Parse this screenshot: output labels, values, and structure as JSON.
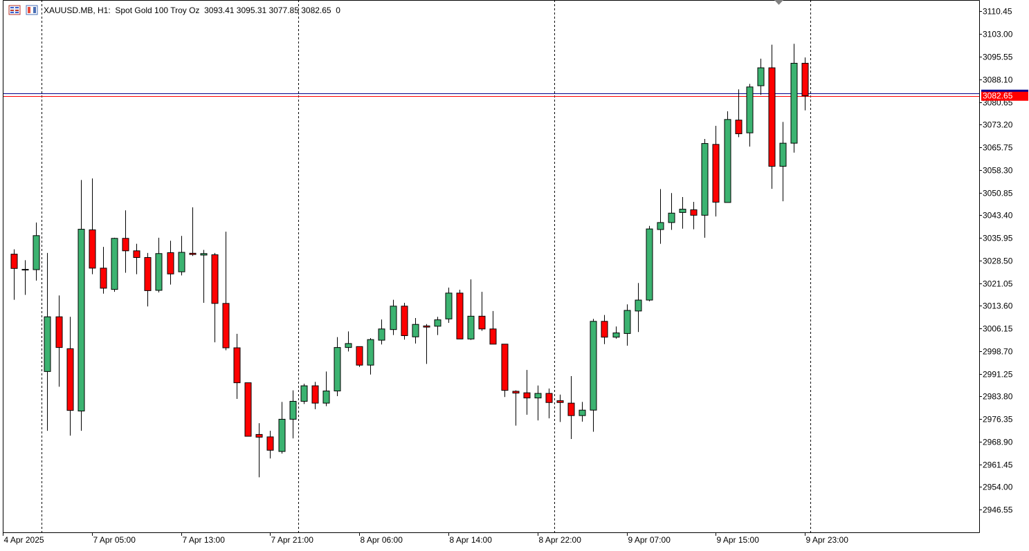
{
  "header": {
    "symbol_line": "XAUUSD.MB, H1:  Spot Gold 100 Troy Oz  3093.41 3095.31 3077.85 3082.65  0"
  },
  "price_tag": {
    "label": "3082.65",
    "value": 3082.65,
    "color": "#ff0000"
  },
  "colors": {
    "bull": "#3cb371",
    "bear": "#ff0000",
    "wick": "#000000",
    "grid_separator": "#000000",
    "bid_line": "#00008b",
    "ask_line": "#ff0000",
    "background": "#ffffff"
  },
  "chart_data": {
    "type": "candlestick",
    "title": "XAUUSD.MB, H1:  Spot Gold 100 Troy Oz",
    "timeframe": "H1",
    "ohlc_readout": {
      "open": 3093.41,
      "high": 3095.31,
      "low": 3077.85,
      "close": 3082.65,
      "volume": 0
    },
    "ylim": [
      2939.1,
      3114.2
    ],
    "y_ticks": [
      "3110.45",
      "3103.00",
      "3095.55",
      "3088.10",
      "3080.65",
      "3073.20",
      "3065.75",
      "3058.30",
      "3050.85",
      "3043.40",
      "3035.95",
      "3028.50",
      "3021.05",
      "3013.60",
      "3006.15",
      "2998.70",
      "2991.25",
      "2983.80",
      "2976.35",
      "2968.90",
      "2961.45",
      "2954.00",
      "2946.55"
    ],
    "x_labels": [
      {
        "index": 0,
        "label": "4 Apr 2025"
      },
      {
        "index": 8,
        "label": "7 Apr 05:00"
      },
      {
        "index": 16,
        "label": "7 Apr 13:00"
      },
      {
        "index": 24,
        "label": "7 Apr 21:00"
      },
      {
        "index": 32,
        "label": "8 Apr 06:00"
      },
      {
        "index": 40,
        "label": "8 Apr 14:00"
      },
      {
        "index": 48,
        "label": "8 Apr 22:00"
      },
      {
        "index": 56,
        "label": "9 Apr 07:00"
      },
      {
        "index": 64,
        "label": "9 Apr 15:00"
      },
      {
        "index": 72,
        "label": "9 Apr 23:00"
      }
    ],
    "day_separators_after_index": [
      3.5,
      26.5,
      49.5,
      72.5
    ],
    "bid": 3082.65,
    "ask": 3083.6,
    "candles": [
      {
        "o": 3021.5,
        "h": 3031.0,
        "l": 3020.5,
        "c": 3030.8
      },
      {
        "o": 3030.6,
        "h": 3032.2,
        "l": 3015.6,
        "c": 3025.9
      },
      {
        "o": 3025.5,
        "h": 3028.6,
        "l": 3017.2,
        "c": 3025.6
      },
      {
        "o": 3025.5,
        "h": 3041.0,
        "l": 3021.9,
        "c": 3036.7
      },
      {
        "o": 2992.0,
        "h": 3031.0,
        "l": 2972.5,
        "c": 3010.0
      },
      {
        "o": 3010.0,
        "h": 3017.0,
        "l": 2987.0,
        "c": 2999.9
      },
      {
        "o": 2999.5,
        "h": 3010.0,
        "l": 2970.9,
        "c": 2979.2
      },
      {
        "o": 2979.0,
        "h": 3055.0,
        "l": 2972.5,
        "c": 3038.8
      },
      {
        "o": 3038.6,
        "h": 3055.5,
        "l": 3024.0,
        "c": 3026.0
      },
      {
        "o": 3026.0,
        "h": 3033.0,
        "l": 3017.6,
        "c": 3019.4
      },
      {
        "o": 3019.0,
        "h": 3036.0,
        "l": 3018.2,
        "c": 3035.8
      },
      {
        "o": 3035.8,
        "h": 3045.0,
        "l": 3024.5,
        "c": 3031.7
      },
      {
        "o": 3031.7,
        "h": 3034.0,
        "l": 3024.0,
        "c": 3029.5
      },
      {
        "o": 3029.5,
        "h": 3031.0,
        "l": 3013.4,
        "c": 3018.6
      },
      {
        "o": 3018.7,
        "h": 3036.0,
        "l": 3018.0,
        "c": 3030.8
      },
      {
        "o": 3031.1,
        "h": 3035.0,
        "l": 3020.6,
        "c": 3024.1
      },
      {
        "o": 3024.8,
        "h": 3036.6,
        "l": 3023.6,
        "c": 3031.2
      },
      {
        "o": 3030.9,
        "h": 3046.0,
        "l": 3030.0,
        "c": 3030.5
      },
      {
        "o": 3030.3,
        "h": 3032.0,
        "l": 3014.6,
        "c": 3030.8
      },
      {
        "o": 3030.4,
        "h": 3031.0,
        "l": 3001.6,
        "c": 3014.4
      },
      {
        "o": 3014.4,
        "h": 3038.0,
        "l": 2999.0,
        "c": 2999.8
      },
      {
        "o": 2999.8,
        "h": 3004.4,
        "l": 2983.0,
        "c": 2988.3
      },
      {
        "o": 2988.3,
        "h": 2988.3,
        "l": 2970.7,
        "c": 2970.7
      },
      {
        "o": 2971.3,
        "h": 2975.0,
        "l": 2957.2,
        "c": 2970.4
      },
      {
        "o": 2970.5,
        "h": 2972.5,
        "l": 2963.4,
        "c": 2966.1
      },
      {
        "o": 2965.7,
        "h": 2982.0,
        "l": 2965.0,
        "c": 2976.3
      },
      {
        "o": 2976.3,
        "h": 2985.8,
        "l": 2970.0,
        "c": 2982.2
      },
      {
        "o": 2982.2,
        "h": 2988.0,
        "l": 2981.3,
        "c": 2987.3
      },
      {
        "o": 2987.3,
        "h": 2988.6,
        "l": 2979.6,
        "c": 2981.6
      },
      {
        "o": 2981.6,
        "h": 2992.0,
        "l": 2980.6,
        "c": 2985.6
      },
      {
        "o": 2985.6,
        "h": 3003.3,
        "l": 2983.9,
        "c": 2999.9
      },
      {
        "o": 2999.9,
        "h": 3005.2,
        "l": 2998.6,
        "c": 3001.2
      },
      {
        "o": 3000.2,
        "h": 3000.2,
        "l": 2993.5,
        "c": 2994.1
      },
      {
        "o": 2994.1,
        "h": 3003.0,
        "l": 2991.0,
        "c": 3002.5
      },
      {
        "o": 3002.3,
        "h": 3009.1,
        "l": 3000.9,
        "c": 3006.0
      },
      {
        "o": 3005.8,
        "h": 3015.6,
        "l": 3004.0,
        "c": 3013.5
      },
      {
        "o": 3013.5,
        "h": 3014.6,
        "l": 3002.5,
        "c": 3003.8
      },
      {
        "o": 3003.4,
        "h": 3009.6,
        "l": 3001.2,
        "c": 3007.5
      },
      {
        "o": 3007.0,
        "h": 3007.6,
        "l": 2994.5,
        "c": 3006.6
      },
      {
        "o": 3006.9,
        "h": 3010.0,
        "l": 3004.0,
        "c": 3009.0
      },
      {
        "o": 3009.3,
        "h": 3019.6,
        "l": 3008.0,
        "c": 3017.8
      },
      {
        "o": 3017.8,
        "h": 3018.9,
        "l": 3002.7,
        "c": 3002.7
      },
      {
        "o": 3002.7,
        "h": 3022.3,
        "l": 3002.4,
        "c": 3010.2
      },
      {
        "o": 3010.2,
        "h": 3018.2,
        "l": 3005.4,
        "c": 3006.0
      },
      {
        "o": 3006.0,
        "h": 3011.9,
        "l": 3001.0,
        "c": 3001.0
      },
      {
        "o": 3001.0,
        "h": 3001.0,
        "l": 2983.6,
        "c": 2985.8
      },
      {
        "o": 2985.5,
        "h": 2985.8,
        "l": 2974.2,
        "c": 2984.9
      },
      {
        "o": 2985.0,
        "h": 2992.5,
        "l": 2977.8,
        "c": 2983.3
      },
      {
        "o": 2983.3,
        "h": 2987.4,
        "l": 2975.9,
        "c": 2984.8
      },
      {
        "o": 2984.8,
        "h": 2986.4,
        "l": 2976.6,
        "c": 2981.8
      },
      {
        "o": 2982.4,
        "h": 2984.4,
        "l": 2975.4,
        "c": 2981.8
      },
      {
        "o": 2981.6,
        "h": 2990.5,
        "l": 2969.8,
        "c": 2977.5
      },
      {
        "o": 2977.5,
        "h": 2982.0,
        "l": 2975.5,
        "c": 2979.3
      },
      {
        "o": 2979.3,
        "h": 3009.3,
        "l": 2972.2,
        "c": 3008.5
      },
      {
        "o": 3008.5,
        "h": 3010.6,
        "l": 3001.0,
        "c": 3003.3
      },
      {
        "o": 3003.3,
        "h": 3006.8,
        "l": 3002.8,
        "c": 3004.7
      },
      {
        "o": 3004.5,
        "h": 3014.1,
        "l": 3000.5,
        "c": 3012.1
      },
      {
        "o": 3011.9,
        "h": 3021.1,
        "l": 3005.0,
        "c": 3015.5
      },
      {
        "o": 3015.5,
        "h": 3039.9,
        "l": 3015.1,
        "c": 3038.9
      },
      {
        "o": 3038.7,
        "h": 3052.0,
        "l": 3034.0,
        "c": 3041.0
      },
      {
        "o": 3041.0,
        "h": 3050.7,
        "l": 3038.6,
        "c": 3044.1
      },
      {
        "o": 3044.3,
        "h": 3049.4,
        "l": 3039.0,
        "c": 3045.4
      },
      {
        "o": 3045.2,
        "h": 3047.8,
        "l": 3038.8,
        "c": 3043.4
      },
      {
        "o": 3043.4,
        "h": 3068.5,
        "l": 3036.0,
        "c": 3067.0
      },
      {
        "o": 3066.7,
        "h": 3072.8,
        "l": 3043.0,
        "c": 3047.7
      },
      {
        "o": 3047.6,
        "h": 3077.6,
        "l": 3047.6,
        "c": 3074.9
      },
      {
        "o": 3074.7,
        "h": 3084.8,
        "l": 3069.1,
        "c": 3070.2
      },
      {
        "o": 3070.5,
        "h": 3086.6,
        "l": 3066.0,
        "c": 3085.6
      },
      {
        "o": 3086.0,
        "h": 3094.9,
        "l": 3083.0,
        "c": 3091.9
      },
      {
        "o": 3091.9,
        "h": 3099.5,
        "l": 3052.1,
        "c": 3059.5
      },
      {
        "o": 3059.5,
        "h": 3074.1,
        "l": 3048.0,
        "c": 3067.1
      },
      {
        "o": 3067.1,
        "h": 3099.8,
        "l": 3064.0,
        "c": 3093.4
      },
      {
        "o": 3093.4,
        "h": 3095.3,
        "l": 3077.9,
        "c": 3082.7
      }
    ]
  }
}
